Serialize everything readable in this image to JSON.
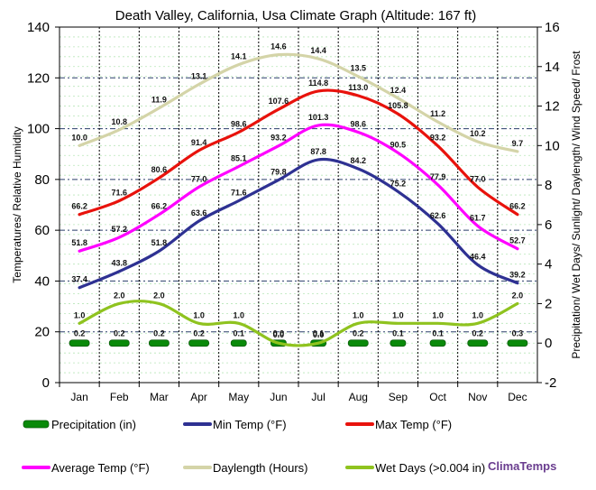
{
  "chart_data": {
    "type": "line",
    "title": "Death Valley, California, Usa Climate Graph (Altitude: 167 ft)",
    "categories": [
      "Jan",
      "Feb",
      "Mar",
      "Apr",
      "May",
      "Jun",
      "Jul",
      "Aug",
      "Sep",
      "Oct",
      "Nov",
      "Dec"
    ],
    "ylabel_left": "Temperatures/ Relative Humidity",
    "ylabel_right": "Precipitation/ Wet Days/ Sunlight/ Daylength/ Wind Speed/ Frost",
    "ylim_left": [
      0,
      140
    ],
    "ylim_right": [
      -2,
      16
    ],
    "yticks_left": [
      "0",
      "20",
      "40",
      "60",
      "80",
      "100",
      "120",
      "140"
    ],
    "yticks_right": [
      "-2",
      "0",
      "2",
      "4",
      "6",
      "8",
      "10",
      "12",
      "14",
      "16"
    ],
    "series": [
      {
        "name": "Precipitation (in)",
        "kind": "bar",
        "axis": "right",
        "color": "#0a8a0a",
        "values": [
          0.2,
          0.2,
          0.2,
          0.2,
          0.1,
          0.0,
          0.1,
          0.2,
          0.1,
          0.1,
          0.2,
          0.3
        ],
        "labels": [
          "0.2",
          "0.2",
          "0.2",
          "0.2",
          "0.1",
          "0.0",
          "0.1",
          "0.2",
          "0.1",
          "0.1",
          "0.2",
          "0.3"
        ]
      },
      {
        "name": "Min Temp (°F)",
        "kind": "line",
        "axis": "left",
        "color": "#2e3192",
        "values": [
          37.4,
          43.8,
          51.8,
          63.6,
          71.6,
          79.8,
          87.8,
          84.2,
          75.2,
          62.6,
          46.4,
          39.2
        ],
        "labels": [
          "37.4",
          "43.8",
          "51.8",
          "63.6",
          "71.6",
          "79.8",
          "87.8",
          "84.2",
          "75.2",
          "62.6",
          "46.4",
          "39.2"
        ]
      },
      {
        "name": "Max Temp (°F)",
        "kind": "line",
        "axis": "left",
        "color": "#e8120c",
        "values": [
          66.2,
          71.6,
          80.6,
          91.4,
          98.6,
          107.6,
          114.8,
          113.0,
          105.8,
          93.2,
          77.0,
          66.2
        ],
        "labels": [
          "66.2",
          "71.6",
          "80.6",
          "91.4",
          "98.6",
          "107.6",
          "114.8",
          "113.0",
          "105.8",
          "93.2",
          "77.0",
          "66.2"
        ]
      },
      {
        "name": "Average Temp (°F)",
        "kind": "line",
        "axis": "left",
        "color": "#ff00ff",
        "values": [
          51.8,
          57.2,
          66.2,
          77.0,
          85.1,
          93.2,
          101.3,
          98.6,
          90.5,
          77.9,
          61.7,
          52.7
        ],
        "labels": [
          "51.8",
          "57.2",
          "66.2",
          "77.0",
          "85.1",
          "93.2",
          "101.3",
          "98.6",
          "90.5",
          "77.9",
          "61.7",
          "52.7"
        ]
      },
      {
        "name": "Daylength (Hours)",
        "kind": "line",
        "axis": "right",
        "color": "#d4d4a8",
        "values": [
          10.0,
          10.8,
          11.9,
          13.1,
          14.1,
          14.6,
          14.4,
          13.5,
          12.4,
          11.2,
          10.2,
          9.7
        ],
        "labels": [
          "10.0",
          "10.8",
          "11.9",
          "13.1",
          "14.1",
          "14.6",
          "14.4",
          "13.5",
          "12.4",
          "11.2",
          "10.2",
          "9.7"
        ]
      },
      {
        "name": "Wet Days (>0.004 in)",
        "kind": "line",
        "axis": "right",
        "color": "#8fc31f",
        "values": [
          1.0,
          2.0,
          2.0,
          1.0,
          1.0,
          0.0,
          0.0,
          1.0,
          1.0,
          1.0,
          1.0,
          2.0
        ],
        "labels": [
          "1.0",
          "2.0",
          "2.0",
          "1.0",
          "1.0",
          "0.0",
          "0.0",
          "1.0",
          "1.0",
          "1.0",
          "1.0",
          "2.0"
        ]
      }
    ],
    "legend_position": "bottom",
    "watermark": "ClimaTemps"
  }
}
